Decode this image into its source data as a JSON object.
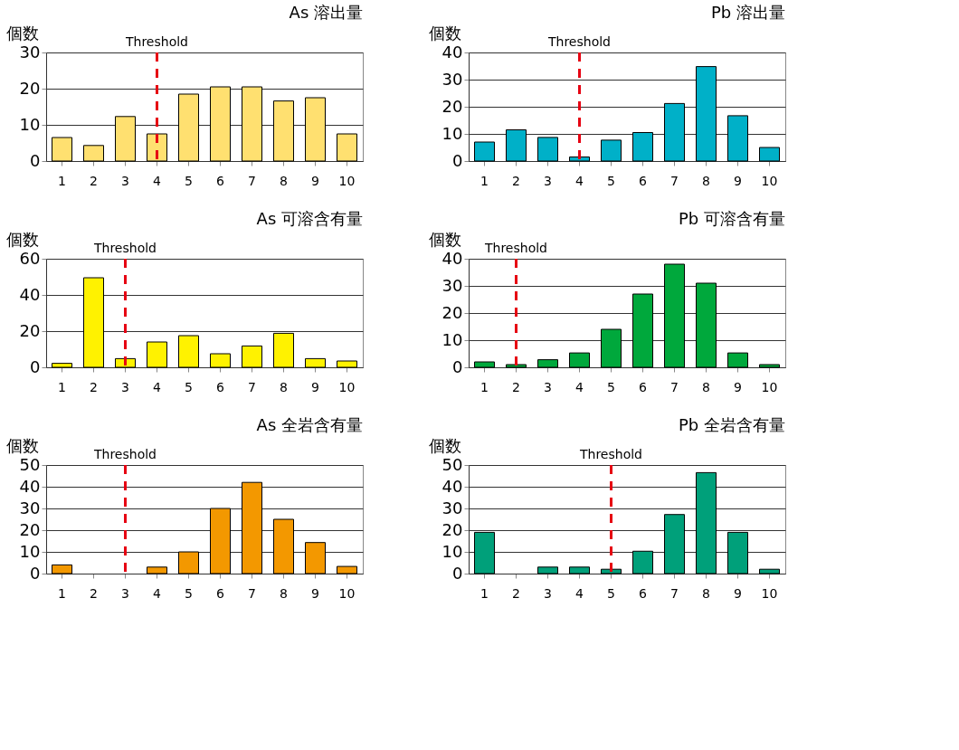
{
  "chart_data": [
    {
      "type": "bar",
      "title": "As 溶出量",
      "ylabel": "個数",
      "categories": [
        "1",
        "2",
        "3",
        "4",
        "5",
        "6",
        "7",
        "8",
        "9",
        "10"
      ],
      "values": [
        6.5,
        4.3,
        12.3,
        7.5,
        18.5,
        20.5,
        20.5,
        16.6,
        17.5,
        7.5
      ],
      "color": "#ffe070",
      "ylim": [
        0,
        30
      ],
      "yticks": [
        0,
        10,
        20,
        30
      ],
      "grid": "y",
      "ref_lines": [
        {
          "axis": "x",
          "value": "4",
          "label": "Threshold",
          "color": "#e60012",
          "line_style": "dashed"
        }
      ]
    },
    {
      "type": "bar",
      "title": "Pb 溶出量",
      "ylabel": "個数",
      "categories": [
        "1",
        "2",
        "3",
        "4",
        "5",
        "6",
        "7",
        "8",
        "9",
        "10"
      ],
      "values": [
        7,
        11.5,
        8.7,
        1.5,
        7.7,
        10.5,
        21.2,
        34.8,
        16.7,
        5
      ],
      "color": "#00b0c8",
      "ylim": [
        0,
        40
      ],
      "yticks": [
        0,
        10,
        20,
        30,
        40
      ],
      "grid": "y",
      "ref_lines": [
        {
          "axis": "x",
          "value": "4",
          "label": "Threshold",
          "color": "#e60012",
          "line_style": "dashed"
        }
      ]
    },
    {
      "type": "bar",
      "title": "As 可溶含有量",
      "ylabel": "個数",
      "categories": [
        "1",
        "2",
        "3",
        "4",
        "5",
        "6",
        "7",
        "8",
        "9",
        "10"
      ],
      "values": [
        2.2,
        49.5,
        4.8,
        14,
        17.5,
        7.5,
        11.8,
        18.8,
        4.8,
        3.5
      ],
      "color": "#fff200",
      "ylim": [
        0,
        60
      ],
      "yticks": [
        0,
        20,
        40,
        60
      ],
      "grid": "y",
      "ref_lines": [
        {
          "axis": "x",
          "value": "3",
          "label": "Threshold",
          "color": "#e60012",
          "line_style": "dashed"
        }
      ]
    },
    {
      "type": "bar",
      "title": "Pb 可溶含有量",
      "ylabel": "個数",
      "categories": [
        "1",
        "2",
        "3",
        "4",
        "5",
        "6",
        "7",
        "8",
        "9",
        "10"
      ],
      "values": [
        2,
        1,
        2.8,
        5.3,
        14,
        27,
        38,
        31,
        5.3,
        1
      ],
      "color": "#00a83c",
      "ylim": [
        0,
        40
      ],
      "yticks": [
        0,
        10,
        20,
        30,
        40
      ],
      "grid": "y",
      "ref_lines": [
        {
          "axis": "x",
          "value": "2",
          "label": "Threshold",
          "color": "#e60012",
          "line_style": "dashed"
        }
      ]
    },
    {
      "type": "bar",
      "title": "As 全岩含有量",
      "ylabel": "個数",
      "categories": [
        "1",
        "2",
        "3",
        "4",
        "5",
        "6",
        "7",
        "8",
        "9",
        "10"
      ],
      "values": [
        4,
        null,
        null,
        3,
        10,
        30,
        42,
        25,
        14.3,
        3.3
      ],
      "color": "#f39800",
      "ylim": [
        0,
        50
      ],
      "yticks": [
        0,
        10,
        20,
        30,
        40,
        50
      ],
      "grid": "y",
      "ref_lines": [
        {
          "axis": "x",
          "value": "3",
          "label": "Threshold",
          "color": "#e60012",
          "line_style": "dashed"
        }
      ]
    },
    {
      "type": "bar",
      "title": "Pb 全岩含有量",
      "ylabel": "個数",
      "categories": [
        "1",
        "2",
        "3",
        "4",
        "5",
        "6",
        "7",
        "8",
        "9",
        "10"
      ],
      "values": [
        19,
        null,
        3,
        3,
        2,
        10.3,
        27.2,
        46.5,
        19,
        2
      ],
      "color": "#00a07a",
      "ylim": [
        0,
        50
      ],
      "yticks": [
        0,
        10,
        20,
        30,
        40,
        50
      ],
      "grid": "y",
      "ref_lines": [
        {
          "axis": "x",
          "value": "5",
          "label": "Threshold",
          "color": "#e60012",
          "line_style": "dashed"
        }
      ]
    }
  ]
}
